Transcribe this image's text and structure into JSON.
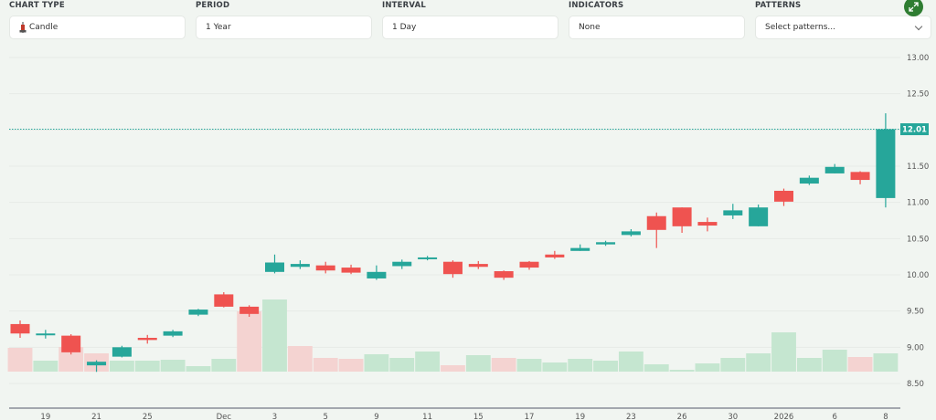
{
  "controls": {
    "chart_type": {
      "label": "CHART TYPE",
      "value": "Candle",
      "icon": "candlestick-icon"
    },
    "period": {
      "label": "PERIOD",
      "value": "1 Year"
    },
    "interval": {
      "label": "INTERVAL",
      "value": "1 Day"
    },
    "indicators": {
      "label": "INDICATORS",
      "value": "None"
    },
    "patterns": {
      "label": "PATTERNS",
      "placeholder": "Select patterns...",
      "icon": "chevron-down-icon"
    },
    "expand_icon": "expand-icon"
  },
  "colors": {
    "up": "#26a69a",
    "down": "#ef5350",
    "volume_up": "#c5e6d0",
    "volume_down": "#f4d3d1",
    "price_tag": "#26a69a",
    "background": "#f1f5f1",
    "expand_button": "#2f7d32"
  },
  "chart_data": {
    "type": "candlestick",
    "title": "",
    "xlabel": "",
    "ylabel": "",
    "ylim": [
      8.4,
      13.0
    ],
    "yticks": [
      "13.00",
      "12.50",
      "12.00",
      "11.50",
      "11.00",
      "10.50",
      "10.00",
      "9.50",
      "9.00",
      "8.50"
    ],
    "grid": true,
    "last_price": "12.01",
    "x_tick_labels": [
      {
        "index": 1,
        "label": "19"
      },
      {
        "index": 3,
        "label": "21"
      },
      {
        "index": 5,
        "label": "25"
      },
      {
        "index": 8,
        "label": "Dec"
      },
      {
        "index": 10,
        "label": "3"
      },
      {
        "index": 12,
        "label": "5"
      },
      {
        "index": 14,
        "label": "9"
      },
      {
        "index": 16,
        "label": "11"
      },
      {
        "index": 18,
        "label": "15"
      },
      {
        "index": 20,
        "label": "17"
      },
      {
        "index": 22,
        "label": "19"
      },
      {
        "index": 24,
        "label": "23"
      },
      {
        "index": 26,
        "label": "26"
      },
      {
        "index": 28,
        "label": "30"
      },
      {
        "index": 30,
        "label": "2026"
      },
      {
        "index": 32,
        "label": "6"
      },
      {
        "index": 34,
        "label": "8"
      }
    ],
    "series": [
      {
        "name": "price",
        "ohlc": [
          [
            9.32,
            9.37,
            9.13,
            9.19
          ],
          [
            9.18,
            9.24,
            9.12,
            9.19
          ],
          [
            9.16,
            9.18,
            8.9,
            8.93
          ],
          [
            8.75,
            8.82,
            8.66,
            8.8
          ],
          [
            8.87,
            9.02,
            8.86,
            9.0
          ],
          [
            9.13,
            9.17,
            9.05,
            9.1
          ],
          [
            9.16,
            9.24,
            9.14,
            9.22
          ],
          [
            9.45,
            9.53,
            9.43,
            9.52
          ],
          [
            9.73,
            9.76,
            9.55,
            9.56
          ],
          [
            9.56,
            9.58,
            9.42,
            9.46
          ],
          [
            10.04,
            10.28,
            10.02,
            10.17
          ],
          [
            10.11,
            10.2,
            10.08,
            10.15
          ],
          [
            10.13,
            10.18,
            10.02,
            10.06
          ],
          [
            10.1,
            10.14,
            10.01,
            10.03
          ],
          [
            9.95,
            10.13,
            9.93,
            10.04
          ],
          [
            10.12,
            10.21,
            10.08,
            10.18
          ],
          [
            10.22,
            10.26,
            10.2,
            10.24
          ],
          [
            10.18,
            10.2,
            9.96,
            10.01
          ],
          [
            10.15,
            10.19,
            10.08,
            10.11
          ],
          [
            10.05,
            10.06,
            9.93,
            9.96
          ],
          [
            10.18,
            10.19,
            10.07,
            10.1
          ],
          [
            10.28,
            10.33,
            10.22,
            10.24
          ],
          [
            10.33,
            10.42,
            10.33,
            10.37
          ],
          [
            10.42,
            10.47,
            10.4,
            10.45
          ],
          [
            10.55,
            10.63,
            10.53,
            10.6
          ],
          [
            10.81,
            10.86,
            10.37,
            10.62
          ],
          [
            10.93,
            10.93,
            10.58,
            10.67
          ],
          [
            10.73,
            10.79,
            10.6,
            10.68
          ],
          [
            10.82,
            10.98,
            10.77,
            10.89
          ],
          [
            10.67,
            10.97,
            10.67,
            10.93
          ],
          [
            11.16,
            11.19,
            10.95,
            11.01
          ],
          [
            11.26,
            11.37,
            11.24,
            11.34
          ],
          [
            11.4,
            11.53,
            11.4,
            11.49
          ],
          [
            11.42,
            11.43,
            11.25,
            11.31
          ],
          [
            11.06,
            12.23,
            10.93,
            12.01
          ]
        ]
      },
      {
        "name": "volume",
        "values": [
          26,
          12,
          27,
          20,
          12,
          12,
          13,
          6,
          14,
          66,
          79,
          28,
          15,
          14,
          19,
          15,
          22,
          7,
          18,
          15,
          14,
          10,
          14,
          12,
          22,
          8,
          2,
          9,
          15,
          20,
          43,
          15,
          24,
          16,
          20
        ],
        "direction": [
          "down",
          "up",
          "down",
          "down",
          "up",
          "up",
          "up",
          "up",
          "up",
          "down",
          "up",
          "down",
          "down",
          "down",
          "up",
          "up",
          "up",
          "down",
          "up",
          "down",
          "up",
          "up",
          "up",
          "up",
          "up",
          "up",
          "up",
          "up",
          "up",
          "up",
          "up",
          "up",
          "up",
          "down",
          "up"
        ]
      }
    ]
  }
}
